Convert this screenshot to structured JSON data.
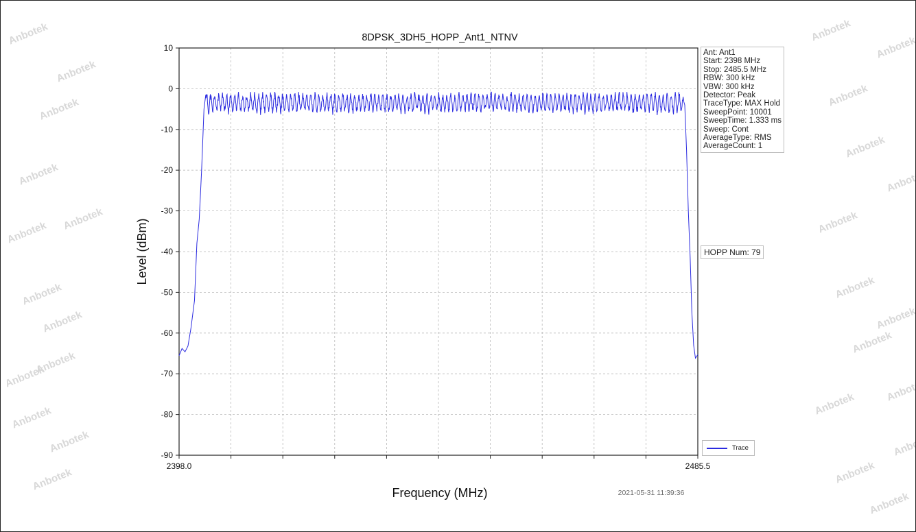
{
  "chart_data": {
    "type": "line",
    "title": "8DPSK_3DH5_HOPP_Ant1_NTNV",
    "xlabel": "Frequency (MHz)",
    "ylabel": "Level (dBm)",
    "xlim": [
      2398.0,
      2485.5
    ],
    "ylim": [
      -90,
      10
    ],
    "x_tick_labels": [
      "2398.0",
      "2485.5"
    ],
    "y_ticks": [
      10,
      0,
      -10,
      -20,
      -30,
      -40,
      -50,
      -60,
      -70,
      -80,
      -90
    ],
    "x_minor_ticks": 9,
    "grid": true,
    "legend": "bottom-right outside",
    "series": [
      {
        "name": "Trace",
        "color": "#2b2be0",
        "points": [
          [
            2398.0,
            -66
          ],
          [
            2398.5,
            -65
          ],
          [
            2399.0,
            -64
          ],
          [
            2399.5,
            -62
          ],
          [
            2400.0,
            -58
          ],
          [
            2400.6,
            -52
          ],
          [
            2401.0,
            -38
          ],
          [
            2401.4,
            -32
          ],
          [
            2401.8,
            -20
          ],
          [
            2402.2,
            -5
          ],
          [
            2402.5,
            -1.5
          ],
          [
            2402.8,
            -3
          ],
          [
            2483.1,
            -3
          ],
          [
            2483.3,
            -4
          ],
          [
            2483.6,
            -15
          ],
          [
            2483.9,
            -30
          ],
          [
            2484.2,
            -41
          ],
          [
            2484.5,
            -55
          ],
          [
            2484.8,
            -63
          ],
          [
            2485.1,
            -65
          ],
          [
            2485.5,
            -66
          ]
        ],
        "plateau_level": -3,
        "ripple_range": [
          -6,
          -1
        ]
      }
    ]
  },
  "info_box": [
    "Ant: Ant1",
    "Start: 2398 MHz",
    "Stop: 2485.5 MHz",
    "RBW: 300 kHz",
    "VBW: 300 kHz",
    "Detector: Peak",
    "TraceType: MAX Hold",
    "SweepPoint: 10001",
    "SweepTime: 1.333 ms",
    "Sweep: Cont",
    "AverageType: RMS",
    "AverageCount: 1"
  ],
  "hopp_label": "HOPP Num: 79",
  "legend_label": "Trace",
  "timestamp": "2021-05-31 11:39:36",
  "watermark_text": "Anbotek"
}
